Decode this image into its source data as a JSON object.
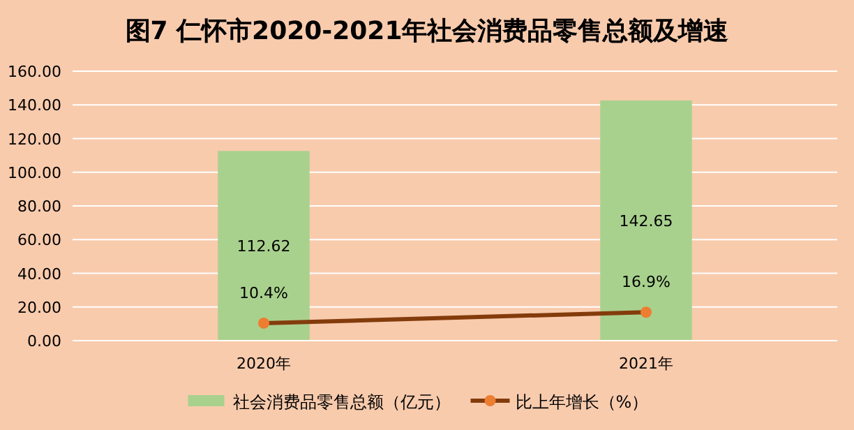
{
  "chart_data": {
    "type": "bar",
    "title": "图7  仁怀市2020-2021年社会消费品零售总额及增速",
    "categories": [
      "2020年",
      "2021年"
    ],
    "series": [
      {
        "name": "社会消费品零售总额（亿元）",
        "color": "#a9d18e",
        "values": [
          112.62,
          142.65
        ],
        "value_labels": [
          "112.62",
          "142.65"
        ]
      },
      {
        "name": "比上年增长（%）",
        "type": "line",
        "color": "#843c0c",
        "marker": "circle",
        "values": [
          10.4,
          16.9
        ],
        "value_labels": [
          "10.4%",
          "16.9%"
        ]
      }
    ],
    "ylim": [
      0,
      160
    ],
    "yticks": [
      {
        "value": 0,
        "label": "0.00"
      },
      {
        "value": 20,
        "label": "20.00"
      },
      {
        "value": 40,
        "label": "40.00"
      },
      {
        "value": 60,
        "label": "60.00"
      },
      {
        "value": 80,
        "label": "80.00"
      },
      {
        "value": 100,
        "label": "100.00"
      },
      {
        "value": 120,
        "label": "120.00"
      },
      {
        "value": 140,
        "label": "140.00"
      },
      {
        "value": 160,
        "label": "160.00"
      }
    ],
    "grid": "y",
    "legend": "bottom"
  }
}
